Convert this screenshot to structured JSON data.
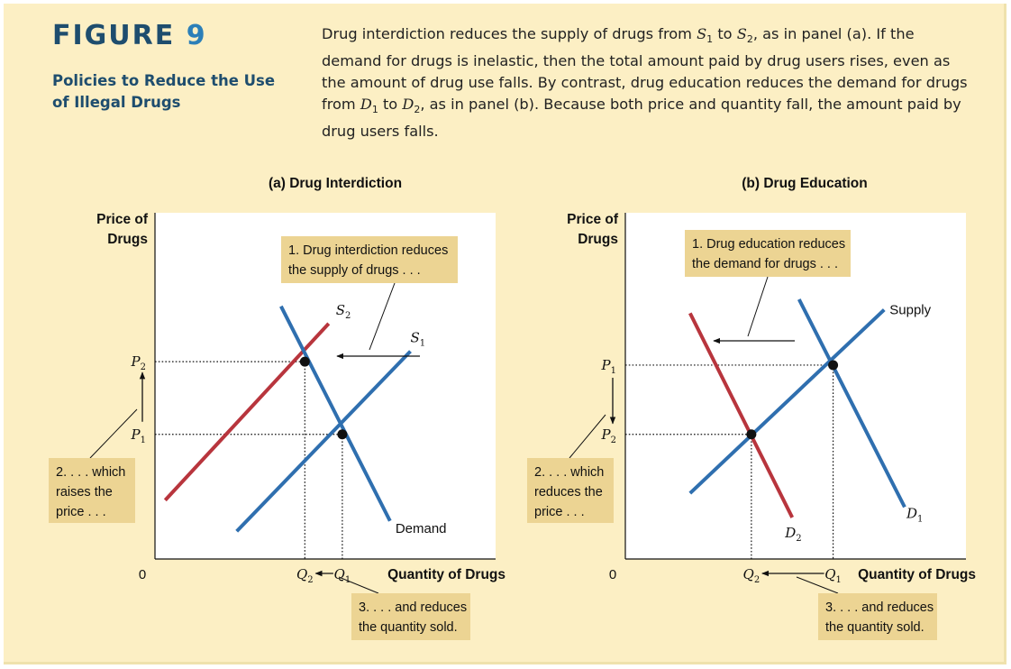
{
  "figure": {
    "label_word": "FIGURE",
    "label_number": "9",
    "title": "Policies to Reduce the Use of Illegal Drugs",
    "caption": [
      {
        "t": "Drug interdiction reduces the supply of drugs from "
      },
      {
        "t": "S",
        "i": true
      },
      {
        "t": "1",
        "sub": true
      },
      {
        "t": " to "
      },
      {
        "t": "S",
        "i": true
      },
      {
        "t": "2",
        "sub": true
      },
      {
        "t": ", as in panel (a). If the demand for drugs is inelastic, then the total amount paid by drug users rises, even as the amount of drug use falls. By contrast, drug education reduces the demand for drugs from "
      },
      {
        "t": "D",
        "i": true
      },
      {
        "t": "1",
        "sub": true
      },
      {
        "t": " to "
      },
      {
        "t": "D",
        "i": true
      },
      {
        "t": "2",
        "sub": true
      },
      {
        "t": ", as in panel (b). Because both price and quantity fall, the amount paid by drug users falls."
      }
    ]
  },
  "colors": {
    "blue": "#2f6faf",
    "red": "#b8353d",
    "callout": "#ecd493",
    "plot_bg": "#ffffff"
  },
  "chart_data": [
    {
      "type": "line",
      "title": "(a) Drug Interdiction",
      "ylabel": [
        "Price of",
        "Drugs"
      ],
      "xlabel": "Quantity of Drugs",
      "origin_label": "0",
      "xlim": [
        0,
        100
      ],
      "ylim": [
        0,
        100
      ],
      "series": [
        {
          "id": "S2",
          "label": "S",
          "sub": "2",
          "color": "red",
          "points": [
            [
              3,
              17
            ],
            [
              51,
              68
            ]
          ]
        },
        {
          "id": "S1",
          "label": "S",
          "sub": "1",
          "color": "blue",
          "points": [
            [
              24,
              8
            ],
            [
              75,
              60
            ]
          ]
        },
        {
          "id": "Demand",
          "label": "Demand",
          "color": "blue",
          "points": [
            [
              37,
              73
            ],
            [
              69,
              11
            ]
          ]
        }
      ],
      "equilibria": [
        {
          "name": "new",
          "x": 44,
          "y": 57,
          "qlabel": "Q",
          "qsub": "2",
          "plabel": "P",
          "psub": "2"
        },
        {
          "name": "old",
          "x": 55,
          "y": 36,
          "qlabel": "Q",
          "qsub": "1",
          "plabel": "P",
          "psub": "1"
        }
      ],
      "price_arrow": "up",
      "qty_arrow": "left",
      "annotations": [
        {
          "id": "note1",
          "lines": [
            "1. Drug interdiction reduces",
            "the supply of drugs . . ."
          ]
        },
        {
          "id": "note2",
          "lines": [
            "2. . . . which",
            "raises the",
            "price . . ."
          ]
        },
        {
          "id": "note3",
          "lines": [
            "3. . . . and reduces",
            "the quantity sold."
          ]
        }
      ]
    },
    {
      "type": "line",
      "title": "(b) Drug Education",
      "ylabel": [
        "Price of",
        "Drugs"
      ],
      "xlabel": "Quantity of Drugs",
      "origin_label": "0",
      "xlim": [
        0,
        100
      ],
      "ylim": [
        0,
        100
      ],
      "series": [
        {
          "id": "Supply",
          "label": "Supply",
          "color": "blue",
          "points": [
            [
              19,
              19
            ],
            [
              76,
              72
            ]
          ]
        },
        {
          "id": "D1",
          "label": "D",
          "sub": "1",
          "color": "blue",
          "points": [
            [
              51,
              75
            ],
            [
              82,
              15
            ]
          ]
        },
        {
          "id": "D2",
          "label": "D",
          "sub": "2",
          "color": "red",
          "points": [
            [
              19,
              71
            ],
            [
              49,
              12
            ]
          ]
        }
      ],
      "equilibria": [
        {
          "name": "old",
          "x": 61,
          "y": 56,
          "qlabel": "Q",
          "qsub": "1",
          "plabel": "P",
          "psub": "1"
        },
        {
          "name": "new",
          "x": 37,
          "y": 36,
          "qlabel": "Q",
          "qsub": "2",
          "plabel": "P",
          "psub": "2"
        }
      ],
      "price_arrow": "down",
      "qty_arrow": "left",
      "annotations": [
        {
          "id": "note1",
          "lines": [
            "1. Drug education reduces",
            "the demand for drugs . . ."
          ]
        },
        {
          "id": "note2",
          "lines": [
            "2. . . . which",
            "reduces the",
            "price . . ."
          ]
        },
        {
          "id": "note3",
          "lines": [
            "3. . . . and reduces",
            "the quantity sold."
          ]
        }
      ]
    }
  ]
}
